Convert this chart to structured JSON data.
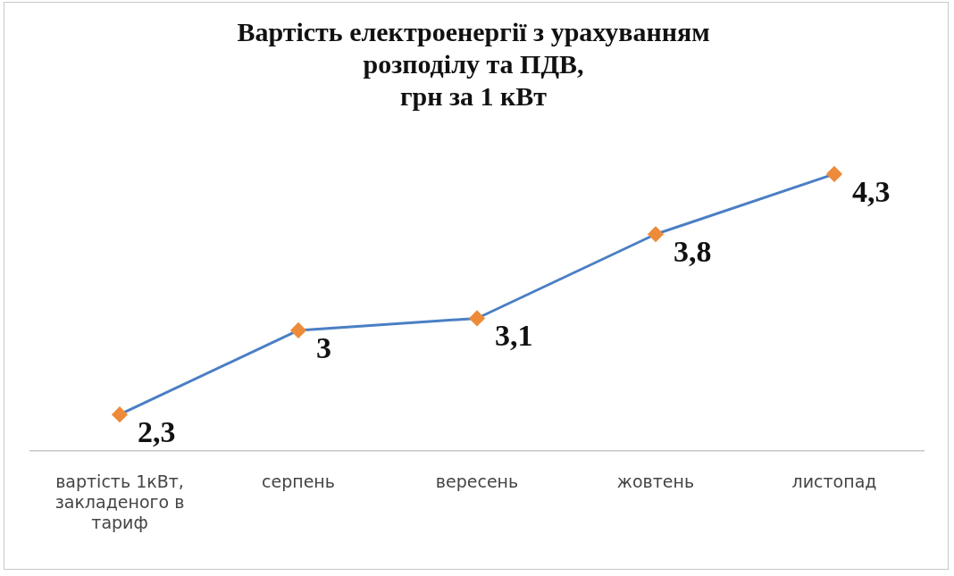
{
  "chart_data": {
    "type": "line",
    "title": "Вартість електроенергії з урахуванням\nрозподілу та ПДВ,\nгрн за 1 кВт",
    "categories": [
      "вартість 1кВт, закладеного в тариф",
      "серпень",
      "вересень",
      "жовтень",
      "листопад"
    ],
    "series": [
      {
        "color": "#4a7fc4",
        "values": [
          2.3,
          3,
          3.1,
          3.8,
          4.3
        ],
        "value_labels": [
          "2,3",
          "3",
          "3,1",
          "3,8",
          "4,3"
        ]
      }
    ],
    "marker": "diamond",
    "line_style": "solid",
    "tick_labels": "x",
    "grid": false,
    "legend": false
  }
}
